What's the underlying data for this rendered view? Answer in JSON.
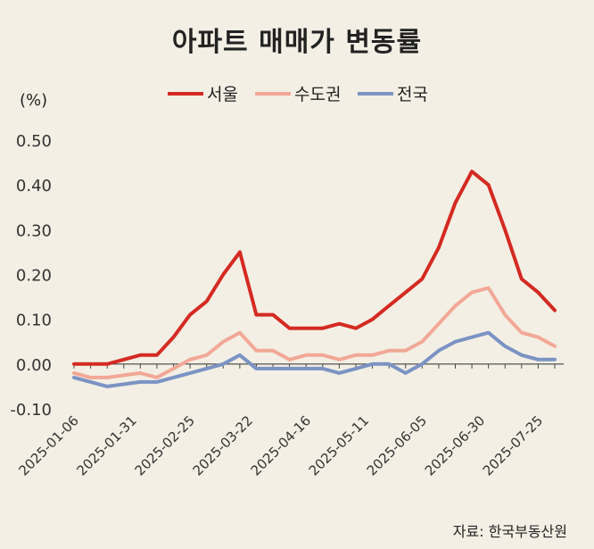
{
  "title": "아파트 매매가 변동률",
  "source": "자료: 한국부동산원",
  "chart_data": {
    "type": "line",
    "title": "아파트 매매가 변동률",
    "unit_label": "(%)",
    "ylim": [
      -0.1,
      0.5
    ],
    "y_ticks": [
      "0.50",
      "0.40",
      "0.30",
      "0.20",
      "0.10",
      "0.00",
      "-0.10"
    ],
    "x_tick_labels": [
      "2025-01-06",
      "2025-01-31",
      "2025-02-25",
      "2025-03-22",
      "2025-04-16",
      "2025-05-11",
      "2025-06-05",
      "2025-06-30",
      "2025-07-25"
    ],
    "legend_position": "top",
    "grid": false,
    "series": [
      {
        "name": "서울",
        "color": "#d42a22",
        "values": [
          0.0,
          0.0,
          0.0,
          0.01,
          0.02,
          0.02,
          0.06,
          0.11,
          0.14,
          0.2,
          0.25,
          0.11,
          0.11,
          0.08,
          0.08,
          0.08,
          0.09,
          0.08,
          0.1,
          0.13,
          0.16,
          0.19,
          0.26,
          0.36,
          0.43,
          0.4,
          0.3,
          0.19,
          0.16,
          0.12
        ]
      },
      {
        "name": "수도권",
        "color": "#f2a896",
        "values": [
          -0.02,
          -0.03,
          -0.03,
          -0.025,
          -0.02,
          -0.03,
          -0.01,
          0.01,
          0.02,
          0.05,
          0.07,
          0.03,
          0.03,
          0.01,
          0.02,
          0.02,
          0.01,
          0.02,
          0.02,
          0.03,
          0.03,
          0.05,
          0.09,
          0.13,
          0.16,
          0.17,
          0.11,
          0.07,
          0.06,
          0.04
        ]
      },
      {
        "name": "전국",
        "color": "#7b93c4",
        "values": [
          -0.03,
          -0.04,
          -0.05,
          -0.045,
          -0.04,
          -0.04,
          -0.03,
          -0.02,
          -0.01,
          0.0,
          0.02,
          -0.01,
          -0.01,
          -0.01,
          -0.01,
          -0.01,
          -0.02,
          -0.01,
          0.0,
          0.0,
          -0.02,
          0.0,
          0.03,
          0.05,
          0.06,
          0.07,
          0.04,
          0.02,
          0.01,
          0.01
        ]
      }
    ]
  }
}
